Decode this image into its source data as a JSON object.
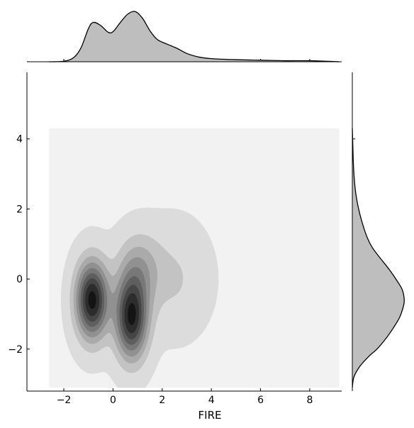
{
  "chart_data": {
    "type": "jointplot-kde",
    "xlabel": "FIRE",
    "ylabel": "",
    "xlim": [
      -3.5,
      9.3
    ],
    "ylim": [
      -3.2,
      5.9
    ],
    "x_ticks": [
      -2,
      0,
      2,
      4,
      6,
      8
    ],
    "y_ticks": [
      -2,
      0,
      2,
      4
    ],
    "x_tick_labels": [
      "−2",
      "0",
      "2",
      "4",
      "6",
      "8"
    ],
    "y_tick_labels": [
      "−2",
      "0",
      "2",
      "4"
    ],
    "kde_support": {
      "x": [
        -2.6,
        9.2
      ],
      "y": [
        -3.1,
        4.3
      ]
    },
    "density_components": [
      {
        "x": -0.85,
        "y": -0.6,
        "sx": 0.45,
        "sy": 0.75,
        "w": 0.42
      },
      {
        "x": 0.75,
        "y": -1.1,
        "sx": 0.45,
        "sy": 0.8,
        "w": 0.4
      },
      {
        "x": 1.05,
        "y": 0.3,
        "sx": 0.6,
        "sy": 0.7,
        "w": 0.12
      },
      {
        "x": 2.5,
        "y": 0.0,
        "sx": 0.9,
        "sy": 1.0,
        "w": 0.06
      }
    ],
    "marginal_x": {
      "x": [
        -2.6,
        -2.0,
        -1.6,
        -1.3,
        -1.0,
        -0.8,
        -0.5,
        -0.2,
        0.0,
        0.3,
        0.6,
        0.9,
        1.2,
        1.5,
        1.8,
        2.2,
        2.6,
        3.0,
        3.5,
        4.0,
        5.0,
        6.0,
        7.0,
        8.0,
        9.2
      ],
      "y": [
        0.0,
        0.01,
        0.08,
        0.27,
        0.64,
        0.76,
        0.7,
        0.57,
        0.58,
        0.76,
        0.92,
        0.97,
        0.84,
        0.6,
        0.43,
        0.34,
        0.26,
        0.16,
        0.09,
        0.06,
        0.04,
        0.03,
        0.02,
        0.02,
        0.0
      ]
    },
    "marginal_y": {
      "y": [
        -3.1,
        -2.8,
        -2.5,
        -2.2,
        -2.0,
        -1.7,
        -1.4,
        -1.1,
        -0.8,
        -0.6,
        -0.3,
        0.0,
        0.3,
        0.6,
        0.9,
        1.2,
        1.6,
        2.0,
        2.4,
        2.8,
        3.3,
        3.8,
        4.3
      ],
      "x": [
        0.0,
        0.03,
        0.14,
        0.32,
        0.47,
        0.64,
        0.78,
        0.9,
        0.97,
        0.99,
        0.95,
        0.83,
        0.69,
        0.53,
        0.38,
        0.28,
        0.19,
        0.12,
        0.07,
        0.04,
        0.02,
        0.01,
        0.0
      ]
    }
  },
  "colors": {
    "background_fill": "#f2f2f2",
    "fill_dark": "#141414",
    "marginal_fill": "#bebebe",
    "line": "#000000"
  }
}
